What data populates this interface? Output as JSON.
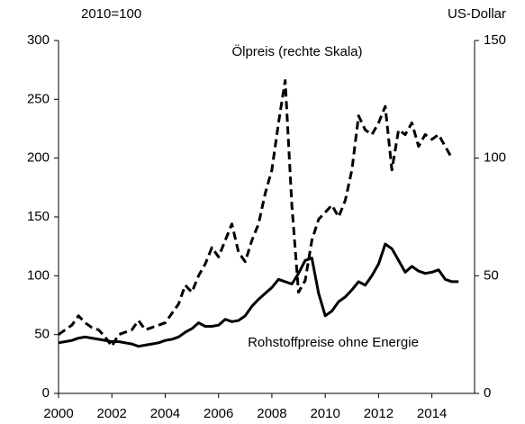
{
  "chart_data": {
    "type": "line",
    "y_label": "2010=100",
    "y2_label": "US-Dollar",
    "annotations": [
      "Ölpreis (rechte Skala)",
      "Rohstoffpreise ohne Energie"
    ],
    "x": [
      2000,
      2000.25,
      2000.5,
      2000.75,
      2001,
      2001.25,
      2001.5,
      2001.75,
      2002,
      2002.25,
      2002.5,
      2002.75,
      2003,
      2003.25,
      2003.5,
      2003.75,
      2004,
      2004.25,
      2004.5,
      2004.75,
      2005,
      2005.25,
      2005.5,
      2005.75,
      2006,
      2006.25,
      2006.5,
      2006.75,
      2007,
      2007.25,
      2007.5,
      2007.75,
      2008,
      2008.25,
      2008.5,
      2008.75,
      2009,
      2009.25,
      2009.5,
      2009.75,
      2010,
      2010.25,
      2010.5,
      2010.75,
      2011,
      2011.25,
      2011.5,
      2011.75,
      2012,
      2012.25,
      2012.5,
      2012.75,
      2013,
      2013.25,
      2013.5,
      2013.75,
      2014,
      2014.25,
      2014.5,
      2014.75,
      2015
    ],
    "xlim": [
      2000,
      2015.6
    ],
    "xticks": [
      2000,
      2002,
      2004,
      2006,
      2008,
      2010,
      2012,
      2014
    ],
    "ylim": [
      0,
      300
    ],
    "yticks": [
      0,
      50,
      100,
      150,
      200,
      250,
      300
    ],
    "y2lim": [
      0,
      150
    ],
    "y2ticks": [
      0,
      50,
      100,
      150
    ],
    "grid": false,
    "series": [
      {
        "name": "Ölpreis (rechte Skala)",
        "color": "#000000",
        "dashed": true,
        "axis": "y2",
        "values": [
          25,
          27,
          29,
          33,
          30,
          28,
          27,
          24,
          20,
          25,
          26,
          27,
          31,
          27,
          28,
          29,
          30,
          34,
          38,
          46,
          43,
          50,
          55,
          62,
          58,
          65,
          72,
          60,
          56,
          65,
          72,
          85,
          95,
          115,
          133,
          80,
          43,
          48,
          65,
          74,
          77,
          80,
          75,
          82,
          95,
          118,
          112,
          110,
          115,
          122,
          95,
          112,
          110,
          115,
          105,
          110,
          108,
          110,
          105,
          100,
          null
        ]
      },
      {
        "name": "Rohstoffpreise ohne Energie",
        "color": "#000000",
        "dashed": false,
        "axis": "y",
        "values": [
          43,
          44,
          45,
          47,
          48,
          47,
          46,
          45,
          44,
          44,
          43,
          42,
          40,
          41,
          42,
          43,
          45,
          46,
          48,
          52,
          55,
          60,
          57,
          57,
          58,
          63,
          61,
          62,
          66,
          74,
          80,
          85,
          90,
          97,
          95,
          93,
          102,
          113,
          115,
          85,
          66,
          70,
          78,
          82,
          88,
          95,
          92,
          100,
          110,
          127,
          123,
          113,
          103,
          108,
          104,
          102,
          103,
          105,
          97,
          95,
          95
        ]
      }
    ]
  }
}
